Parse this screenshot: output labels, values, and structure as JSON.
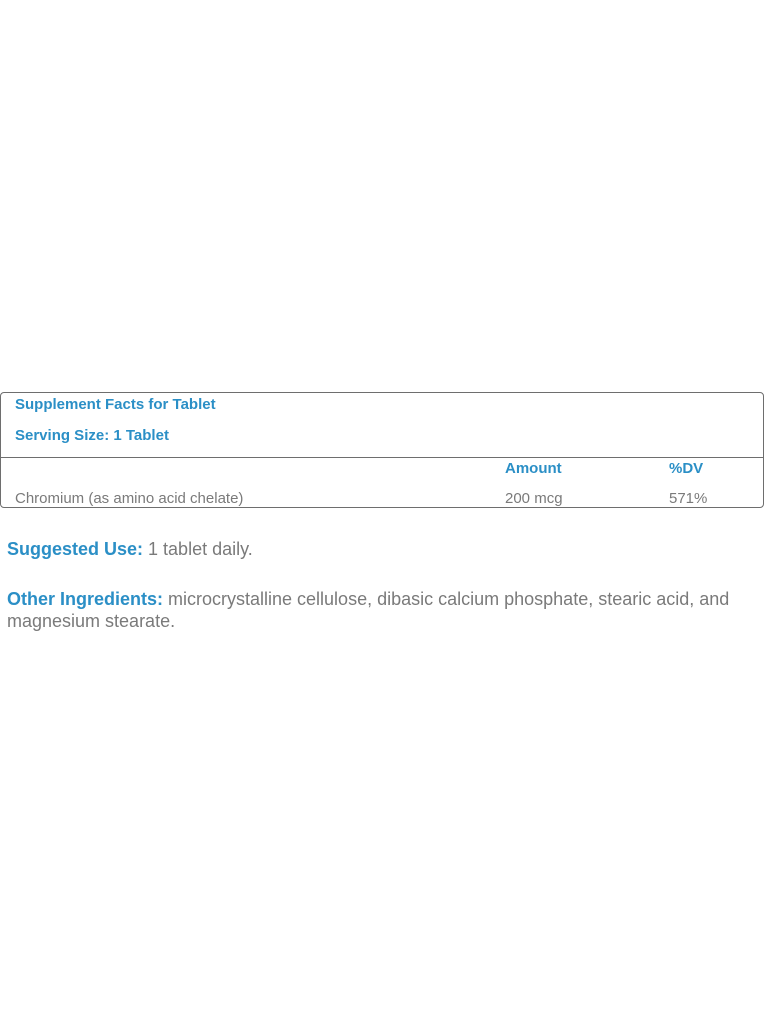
{
  "facts": {
    "title": "Supplement Facts for Tablet",
    "serving_size": "Serving Size: 1 Tablet",
    "columns": {
      "amount": "Amount",
      "dv": "%DV"
    },
    "rows": [
      {
        "name": "Chromium (as amino acid chelate)",
        "amount": "200 mcg",
        "dv": "571%"
      }
    ]
  },
  "suggested_use": {
    "label": "Suggested Use:",
    "text": " 1 tablet daily."
  },
  "other_ingredients": {
    "label": "Other Ingredients:",
    "text": " microcrystalline cellulose, dibasic calcium phosphate, stearic acid, and magnesium stearate."
  }
}
